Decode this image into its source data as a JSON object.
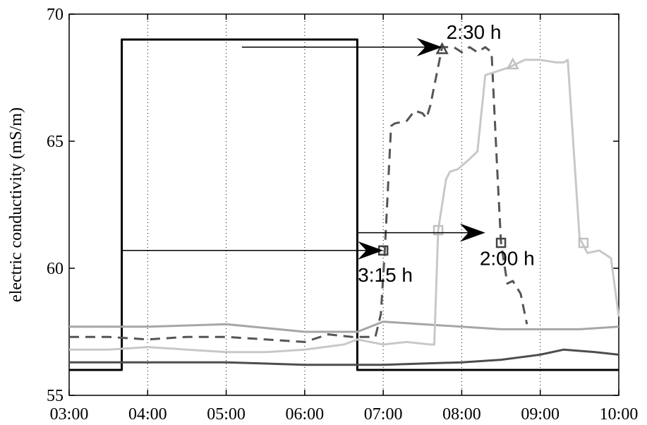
{
  "chart_data": {
    "type": "line",
    "ylabel": "electric conductivity (mS/m)",
    "xlim": [
      3,
      10
    ],
    "ylim": [
      55,
      70
    ],
    "xticks": [
      {
        "value": 3,
        "label": "03:00"
      },
      {
        "value": 4,
        "label": "04:00"
      },
      {
        "value": 5,
        "label": "05:00"
      },
      {
        "value": 6,
        "label": "06:00"
      },
      {
        "value": 7,
        "label": "07:00"
      },
      {
        "value": 8,
        "label": "08:00"
      },
      {
        "value": 9,
        "label": "09:00"
      },
      {
        "value": 10,
        "label": "10:00"
      }
    ],
    "yticks": [
      55,
      60,
      65,
      70
    ],
    "grid": true,
    "series": [
      {
        "color": "#000000",
        "style": "solid",
        "width": 3,
        "x": [
          3,
          3.67,
          3.67,
          6.67,
          6.67,
          10
        ],
        "values": [
          56,
          56,
          69,
          69,
          56,
          56
        ]
      },
      {
        "color": "#a6a6a6",
        "style": "solid",
        "width": 3,
        "x": [
          3,
          4,
          5,
          6,
          6.67,
          7,
          7.5,
          8,
          8.5,
          9,
          9.5,
          10
        ],
        "values": [
          57.7,
          57.7,
          57.8,
          57.5,
          57.5,
          57.9,
          57.8,
          57.7,
          57.6,
          57.6,
          57.6,
          57.7
        ]
      },
      {
        "color": "#4d4d4d",
        "style": "solid",
        "width": 3,
        "x": [
          3,
          4,
          5,
          6,
          7,
          8,
          8.5,
          9,
          9.3,
          9.7,
          10
        ],
        "values": [
          56.3,
          56.3,
          56.3,
          56.2,
          56.2,
          56.3,
          56.4,
          56.6,
          56.8,
          56.7,
          56.6
        ]
      },
      {
        "color": "#555555",
        "style": "dashed",
        "width": 3,
        "x": [
          3,
          3.5,
          4,
          4.5,
          5,
          5.5,
          6,
          6.3,
          6.6,
          6.67,
          6.9,
          6.97,
          7.02,
          7.1,
          7.15,
          7.3,
          7.4,
          7.5,
          7.55,
          7.6,
          7.75,
          7.9,
          8.0,
          8.1,
          8.2,
          8.3,
          8.38,
          8.45,
          8.5,
          8.58,
          8.65,
          8.75,
          8.83
        ],
        "values": [
          57.3,
          57.3,
          57.2,
          57.3,
          57.3,
          57.2,
          57.1,
          57.4,
          57.3,
          57.3,
          57.3,
          58.2,
          60.7,
          65.6,
          65.7,
          65.8,
          66.2,
          66.1,
          65.9,
          66.4,
          68.7,
          68.7,
          68.5,
          68.7,
          68.5,
          68.7,
          68.5,
          64,
          61,
          59.4,
          59.5,
          59,
          57.8
        ],
        "markers": {
          "x": [
            7.0,
            7.75,
            8.5
          ],
          "values": [
            60.7,
            68.6,
            61
          ],
          "symbols": [
            "square",
            "triangle",
            "square"
          ]
        }
      },
      {
        "color": "#c8c8c8",
        "style": "solid",
        "width": 3,
        "x": [
          3,
          3.5,
          4,
          4.5,
          5,
          5.5,
          6,
          6.5,
          6.67,
          7,
          7.3,
          7.6,
          7.65,
          7.7,
          7.8,
          7.85,
          7.95,
          8.1,
          8.2,
          8.3,
          8.4,
          8.6,
          8.8,
          9.0,
          9.2,
          9.3,
          9.35,
          9.5,
          9.6,
          9.75,
          9.9,
          10
        ],
        "values": [
          56.8,
          56.8,
          56.9,
          56.8,
          56.7,
          56.7,
          56.8,
          57,
          57.2,
          57,
          57.1,
          57,
          57,
          61.5,
          63.5,
          63.8,
          63.9,
          64.3,
          64.6,
          67.6,
          67.7,
          67.9,
          68.2,
          68.2,
          68.1,
          68.1,
          68.2,
          61.2,
          60.6,
          60.7,
          60.4,
          58.1
        ],
        "markers": {
          "x": [
            7.7,
            8.65,
            9.55
          ],
          "values": [
            61.5,
            68,
            61
          ],
          "symbols": [
            "square",
            "triangle",
            "square"
          ]
        }
      }
    ],
    "annotations": [
      {
        "text": "2:30 h",
        "x": [
          5.2,
          7.75
        ],
        "y": [
          68.7,
          68.7
        ]
      },
      {
        "text": "3:15 h",
        "x": [
          3.67,
          7.0
        ],
        "y": [
          60.7,
          60.7
        ]
      },
      {
        "text": "2:00 h",
        "x": [
          6.67,
          8.3
        ],
        "y": [
          61.4,
          61.4
        ]
      }
    ]
  }
}
